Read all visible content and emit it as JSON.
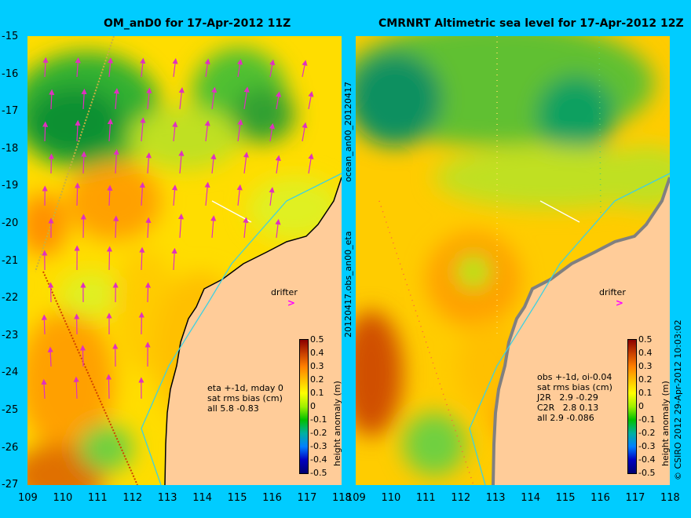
{
  "left_panel": {
    "title": "OM_anD0 for 17-Apr-2012 11Z",
    "note_lines": [
      "eta +-1d, mday 0",
      "sat rms bias (cm)",
      "all 5.8 -0.83"
    ],
    "drifter_label": "drifter"
  },
  "right_panel": {
    "title": "CMRNRT Altimetric sea level  for 17-Apr-2012 12Z",
    "note_lines": [
      "obs +-1d, oi-0.04",
      "sat rms bias (cm)",
      "J2R   2.9 -0.29",
      "C2R   2.8 0.13",
      "all 2.9 -0.086"
    ],
    "drifter_label": "drifter"
  },
  "side_labels": {
    "middle_top": "ocean_an00_20120417",
    "middle_bottom": "20120417.obs_an00_eta",
    "right_edge": "© CSIRO 2012  29-Apr-2012 10:03:02"
  },
  "axes": {
    "lat_ticks": [
      "-15",
      "-16",
      "-17",
      "-18",
      "-19",
      "-20",
      "-21",
      "-22",
      "-23",
      "-24",
      "-25",
      "-26",
      "-27"
    ],
    "lon_ticks": [
      "109",
      "110",
      "111",
      "112",
      "113",
      "114",
      "115",
      "116",
      "117",
      "118"
    ]
  },
  "colorbar": {
    "label": "height anomaly (m)",
    "ticks": [
      "0.5",
      "0.4",
      "0.3",
      "0.2",
      "0.1",
      "0",
      "-0.1",
      "-0.2",
      "-0.3",
      "-0.4",
      "-0.5"
    ],
    "colors": [
      "#8b0000",
      "#c84000",
      "#ff8000",
      "#ffc000",
      "#ffff00",
      "#a0f000",
      "#00c000",
      "#00b0a0",
      "#0080ff",
      "#0000c0",
      "#000070"
    ]
  },
  "colors": {
    "background": "#00ccff",
    "land": "#ffcc99",
    "drifter": "#ff00ff"
  }
}
